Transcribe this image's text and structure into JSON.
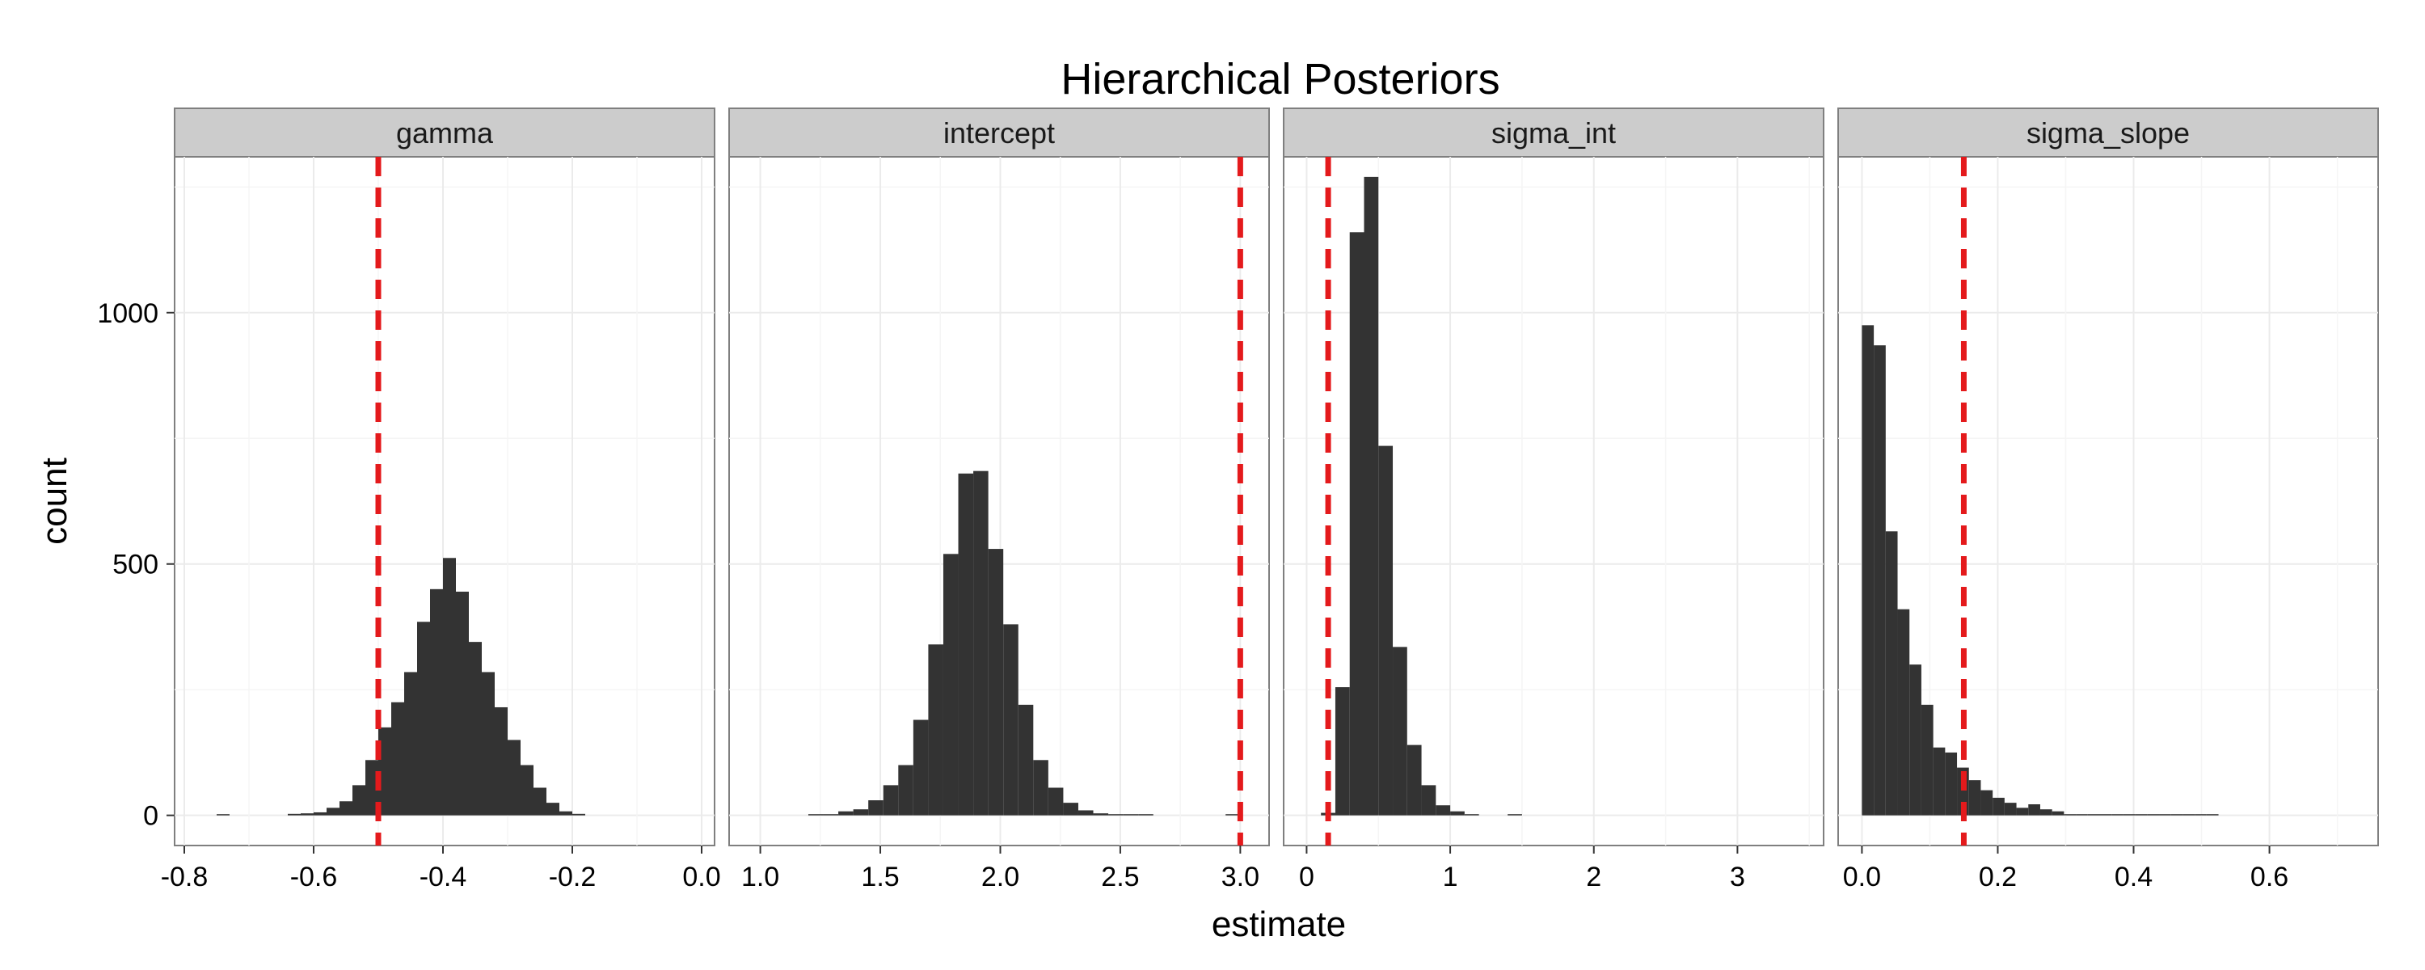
{
  "chart_data": {
    "type": "bar",
    "title": "Hierarchical Posteriors",
    "xlabel": "estimate",
    "ylabel": "count",
    "ylim": [
      -60,
      1310
    ],
    "yticks": [
      0,
      500,
      1000
    ],
    "grid": true,
    "colors": {
      "bars": "#333333",
      "reference_line": "#e41a1c",
      "strip": "#cccccc"
    },
    "panels": [
      {
        "name": "gamma",
        "xlim": [
          -0.815,
          0.02
        ],
        "xticks": [
          -0.8,
          -0.6,
          -0.4,
          -0.2,
          0.0
        ],
        "xtick_labels": [
          "-0.8",
          "-0.6",
          "-0.4",
          "-0.2",
          "0.0"
        ],
        "reference_line": -0.5,
        "bin_width": 0.02,
        "bin_start": -0.64,
        "values": [
          3,
          4,
          6,
          15,
          28,
          60,
          110,
          175,
          225,
          285,
          385,
          450,
          512,
          445,
          345,
          285,
          215,
          150,
          100,
          55,
          25,
          8,
          3
        ],
        "outliers": [
          {
            "x": -0.74,
            "count": 1
          }
        ]
      },
      {
        "name": "intercept",
        "xlim": [
          0.87,
          3.12
        ],
        "xticks": [
          1.0,
          1.5,
          2.0,
          2.5,
          3.0
        ],
        "xtick_labels": [
          "1.0",
          "1.5",
          "2.0",
          "2.5",
          "3.0"
        ],
        "reference_line": 3.0,
        "bin_width": 0.0625,
        "bin_start": 1.2,
        "values": [
          1,
          2,
          8,
          12,
          30,
          60,
          100,
          190,
          340,
          520,
          680,
          685,
          530,
          380,
          220,
          110,
          55,
          25,
          10,
          4,
          2,
          1,
          1
        ],
        "outliers": [
          {
            "x": 2.97,
            "count": 1
          }
        ]
      },
      {
        "name": "sigma_int",
        "xlim": [
          -0.16,
          3.6
        ],
        "xticks": [
          0,
          1,
          2,
          3
        ],
        "xtick_labels": [
          "0",
          "1",
          "2",
          "3"
        ],
        "reference_line": 0.15,
        "bin_width": 0.1,
        "bin_start": 0.1,
        "values": [
          5,
          255,
          1160,
          1270,
          735,
          335,
          140,
          60,
          20,
          8,
          2
        ],
        "outliers": [
          {
            "x": 1.45,
            "count": 1
          }
        ]
      },
      {
        "name": "sigma_slope",
        "xlim": [
          -0.035,
          0.76
        ],
        "xticks": [
          0.0,
          0.2,
          0.4,
          0.6
        ],
        "xtick_labels": [
          "0.0",
          "0.2",
          "0.4",
          "0.6"
        ],
        "reference_line": 0.15,
        "bin_width": 0.0175,
        "bin_start": 0.0,
        "values": [
          975,
          935,
          565,
          410,
          300,
          220,
          135,
          125,
          95,
          70,
          50,
          35,
          25,
          15,
          22,
          12,
          8,
          2,
          2,
          2,
          2,
          2,
          2,
          2,
          2,
          2,
          2,
          2,
          2,
          2
        ],
        "outliers": []
      }
    ]
  }
}
